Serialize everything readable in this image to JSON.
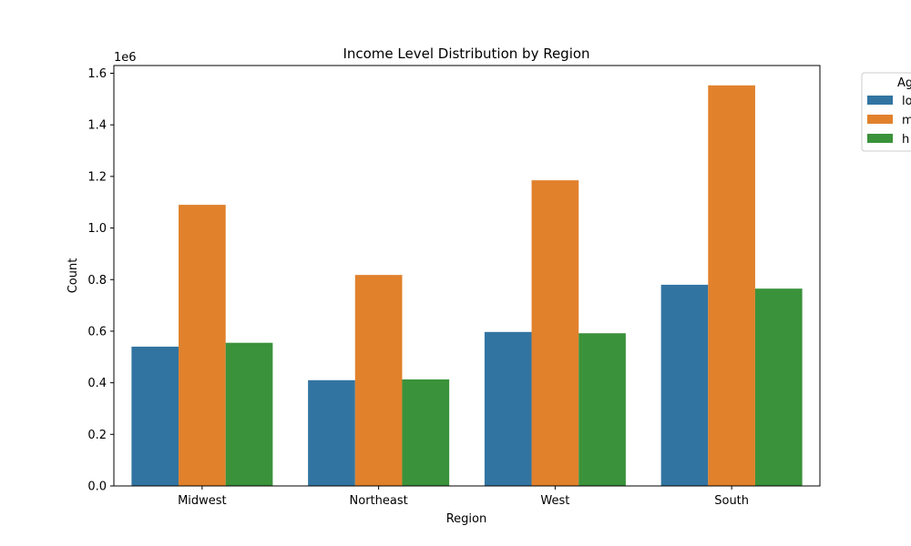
{
  "chart_data": {
    "type": "bar",
    "title": "Income Level Distribution by Region",
    "xlabel": "Region",
    "ylabel": "Count",
    "y_multiplier_label": "1e6",
    "categories": [
      "Midwest",
      "Northeast",
      "West",
      "South"
    ],
    "series": [
      {
        "name": "lo",
        "color": "#3274a1",
        "values": [
          540000,
          410000,
          597000,
          780000
        ]
      },
      {
        "name": "m",
        "color": "#e1812c",
        "values": [
          1090000,
          818000,
          1185000,
          1553000
        ]
      },
      {
        "name": "h",
        "color": "#3a923a",
        "values": [
          555000,
          413000,
          592000,
          765000
        ]
      }
    ],
    "ylim": [
      0,
      1630000
    ],
    "yticks": [
      0,
      200000,
      400000,
      600000,
      800000,
      1000000,
      1200000,
      1400000,
      1600000
    ],
    "ytick_labels": [
      "0.0",
      "0.2",
      "0.4",
      "0.6",
      "0.8",
      "1.0",
      "1.2",
      "1.4",
      "1.6"
    ],
    "legend": {
      "title": "Ag",
      "placement": "outside-top-right"
    },
    "grid": false
  }
}
